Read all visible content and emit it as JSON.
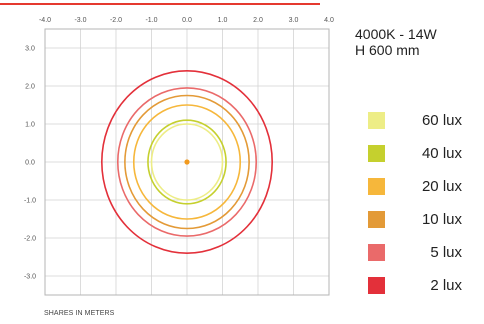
{
  "chart_data": {
    "type": "isolux",
    "xlim": [
      -4.0,
      4.0
    ],
    "ylim": [
      -3.5,
      3.5
    ],
    "x_ticks": [
      "-4.0",
      "-3.0",
      "-2.0",
      "-1.0",
      "0.0",
      "1.0",
      "2.0",
      "3.0",
      "4.0"
    ],
    "y_ticks": [
      "3.0",
      "2.0",
      "1.0",
      "0.0",
      "-1.0",
      "-2.0",
      "-3.0"
    ],
    "grid": true,
    "center": [
      0,
      0
    ],
    "series": [
      {
        "name": "60 lux",
        "radius": 1.0,
        "color": "#eded86"
      },
      {
        "name": "40 lux",
        "radius": 1.1,
        "color": "#c5d02e"
      },
      {
        "name": "20 lux",
        "radius": 1.5,
        "color": "#f6b73b"
      },
      {
        "name": "10 lux",
        "radius": 1.75,
        "color": "#e39a37"
      },
      {
        "name": "5 lux",
        "radius": 1.95,
        "color": "#ea6a6a"
      },
      {
        "name": "2 lux",
        "radius": 2.4,
        "color": "#e3303a"
      }
    ],
    "center_marker_color": "#f29a1e",
    "xlabel": "SHARES IN METERS"
  },
  "info": {
    "line1": "4000K - 14W",
    "line2": "H 600 mm"
  },
  "colors": {
    "accent": "#e5392f",
    "grid": "#d3d3d3",
    "frame": "#b5b5b5"
  }
}
